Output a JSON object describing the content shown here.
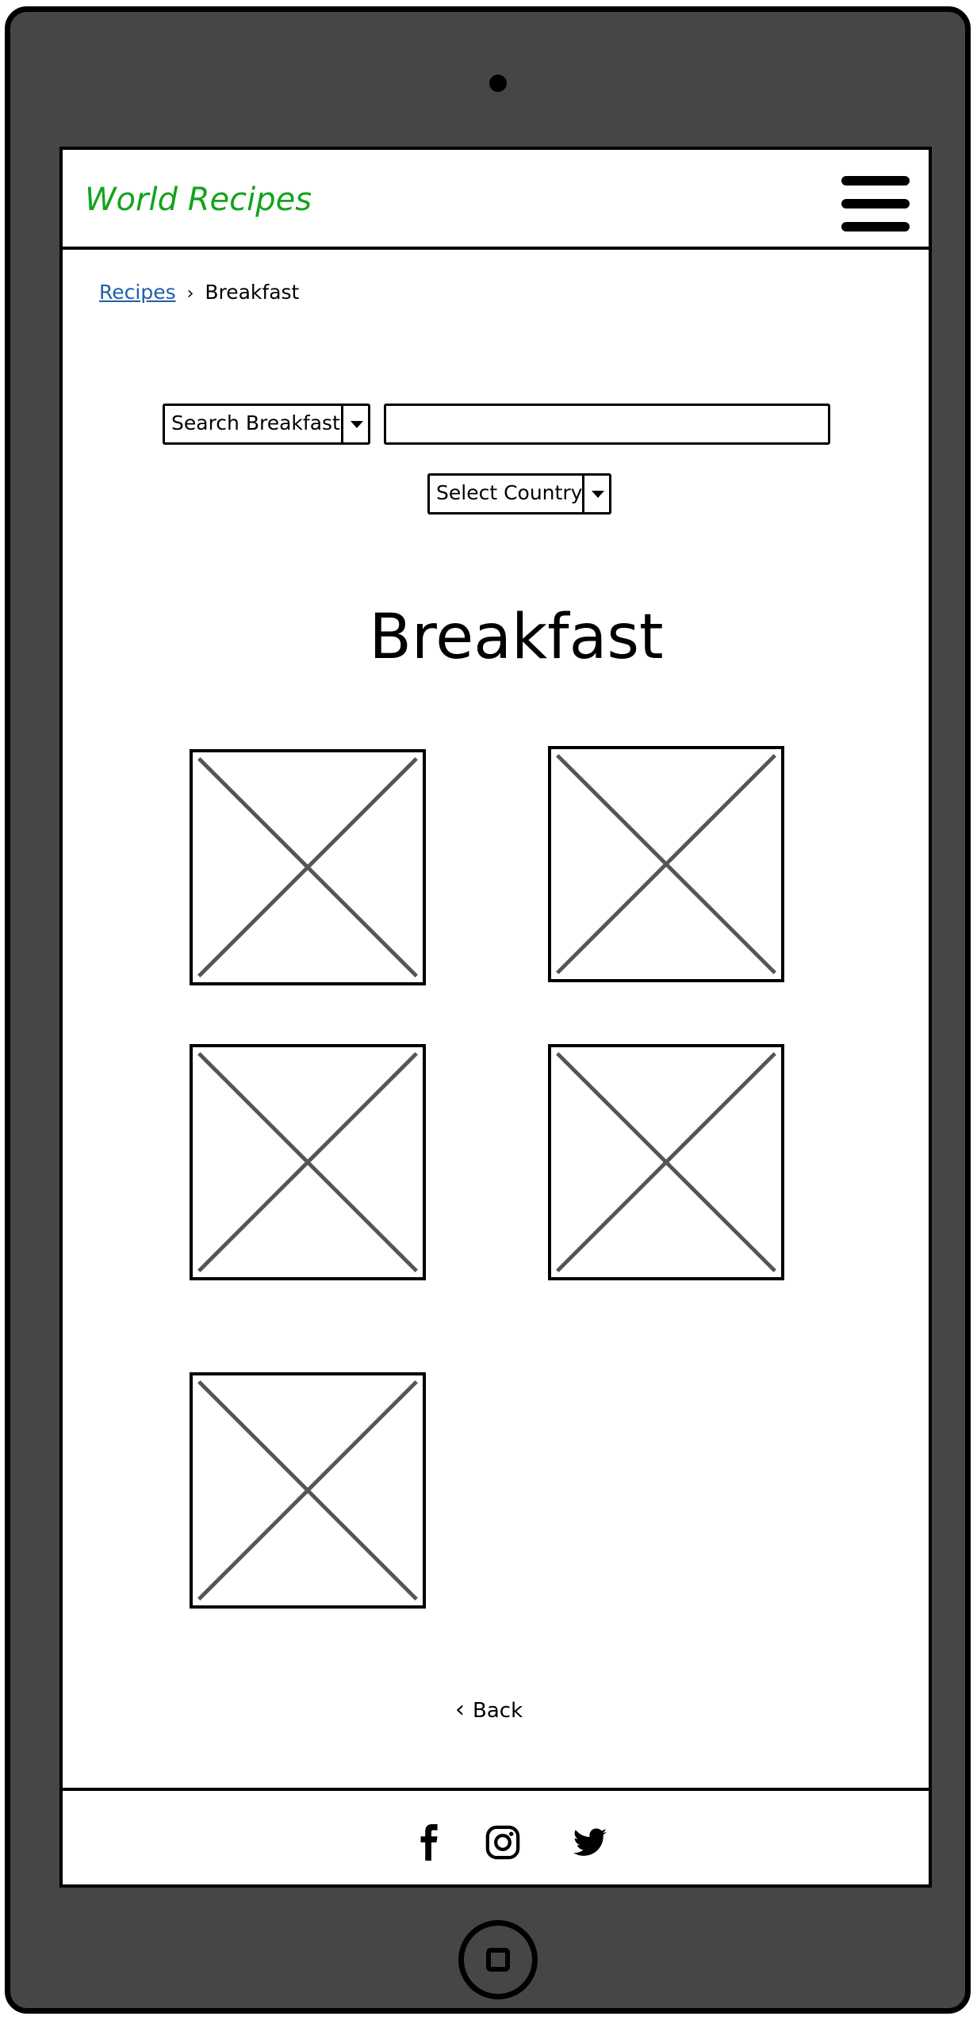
{
  "header": {
    "brand": "World Recipes",
    "menu_icon": "hamburger-menu-icon",
    "brand_color": "#13a31b"
  },
  "breadcrumb": {
    "link": "Recipes",
    "separator_icon": "chevron-right-icon",
    "current": "Breakfast"
  },
  "search": {
    "category_select": "Search Breakfast",
    "input_value": "",
    "country_select": "Select Country"
  },
  "main": {
    "title": "Breakfast",
    "image_placeholder_count": 5
  },
  "back": {
    "label": "Back",
    "icon": "chevron-left-icon"
  },
  "footer": {
    "icons": [
      "facebook-icon",
      "instagram-icon",
      "twitter-icon"
    ]
  },
  "device": {
    "frame_color": "#464646"
  }
}
